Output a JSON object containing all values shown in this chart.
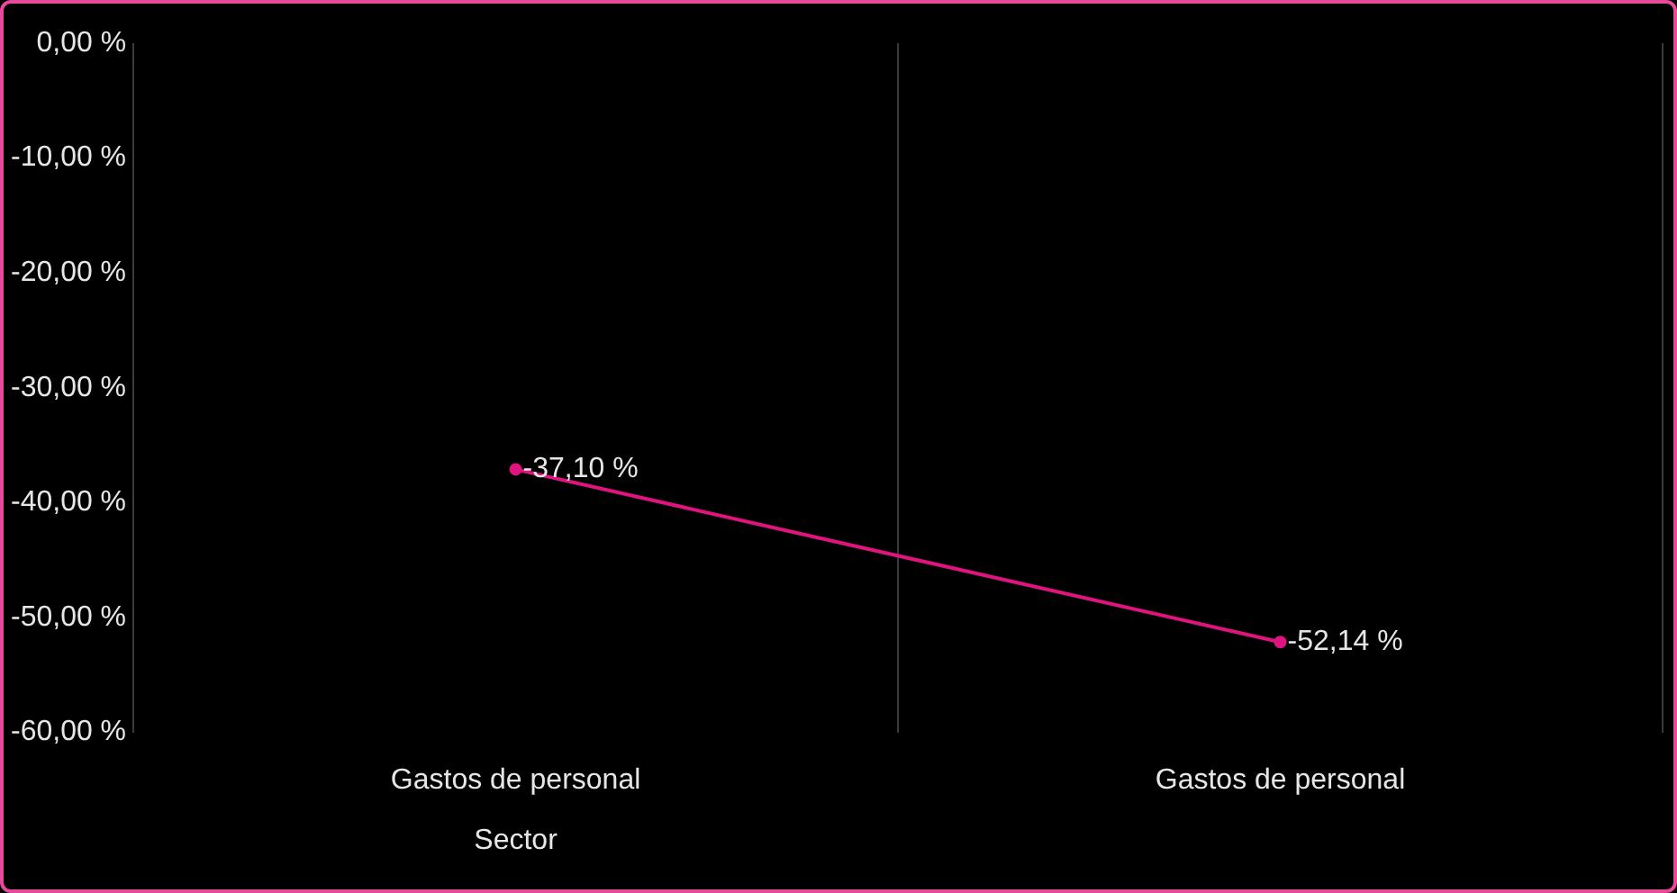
{
  "chart_data": {
    "type": "line",
    "categories": [
      "Gastos de personal\nSector",
      "Gastos de personal"
    ],
    "series": [
      {
        "color": "#e0147f",
        "values": [
          -37.1,
          -52.14
        ],
        "value_labels": [
          "-37,10 %",
          "-52,14 %"
        ]
      }
    ],
    "ylim": [
      -60,
      0
    ],
    "yticks": [
      {
        "value": -60,
        "label": "-60,00 %"
      },
      {
        "value": -50,
        "label": "-50,00 %"
      },
      {
        "value": -40,
        "label": "-40,00 %"
      },
      {
        "value": -30,
        "label": "-30,00 %"
      },
      {
        "value": -20,
        "label": "-20,00 %"
      },
      {
        "value": -10,
        "label": "-10,00 %"
      },
      {
        "value": 0,
        "label": "0,00 %"
      }
    ],
    "grid": "x",
    "marker": "circle",
    "line_style": "solid",
    "legend": false
  }
}
